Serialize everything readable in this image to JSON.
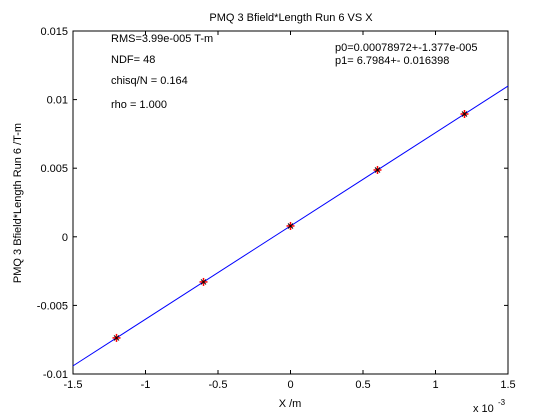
{
  "chart_data": {
    "type": "scatter",
    "title": "PMQ 3 Bfield*Length Run 6 VS X",
    "xlabel": "X /m",
    "ylabel": "PMQ 3 Bfield*Length Run 6 /T-m",
    "x_exponent_label": "x 10",
    "x_exponent_power": "-3",
    "xlim": [
      -0.0015,
      0.0015
    ],
    "ylim": [
      -0.01,
      0.015
    ],
    "x_ticks": [
      -0.0015,
      -0.001,
      -0.0005,
      0,
      0.0005,
      0.001,
      0.0015
    ],
    "x_tick_labels": [
      "-1.5",
      "-1",
      "-0.5",
      "0",
      "0.5",
      "1",
      "1.5"
    ],
    "y_ticks": [
      -0.01,
      -0.005,
      0,
      0.005,
      0.01,
      0.015
    ],
    "y_tick_labels": [
      "-0.01",
      "-0.005",
      "0",
      "0.005",
      "0.01",
      "0.015"
    ],
    "grid": false,
    "series": [
      {
        "marker": "cross",
        "color": "#ff0000",
        "x": [
          -0.0012,
          -0.0006,
          0,
          0.0006,
          0.0012
        ],
        "y": [
          -0.00737,
          -0.00329,
          0.00079,
          0.00487,
          0.00895
        ]
      }
    ],
    "fit": {
      "type": "line",
      "color": "#0000ff",
      "slope": 6.7984,
      "intercept": 0.00078972
    },
    "annotations": {
      "rms": "RMS=3.99e-005 T-m",
      "ndf": "NDF=   48",
      "chisq": "chisq/N = 0.164",
      "rho": "rho     =  1.000",
      "p0": "p0=0.00078972+-1.377e-005",
      "p1": "p1=   6.7984+- 0.016398"
    }
  }
}
